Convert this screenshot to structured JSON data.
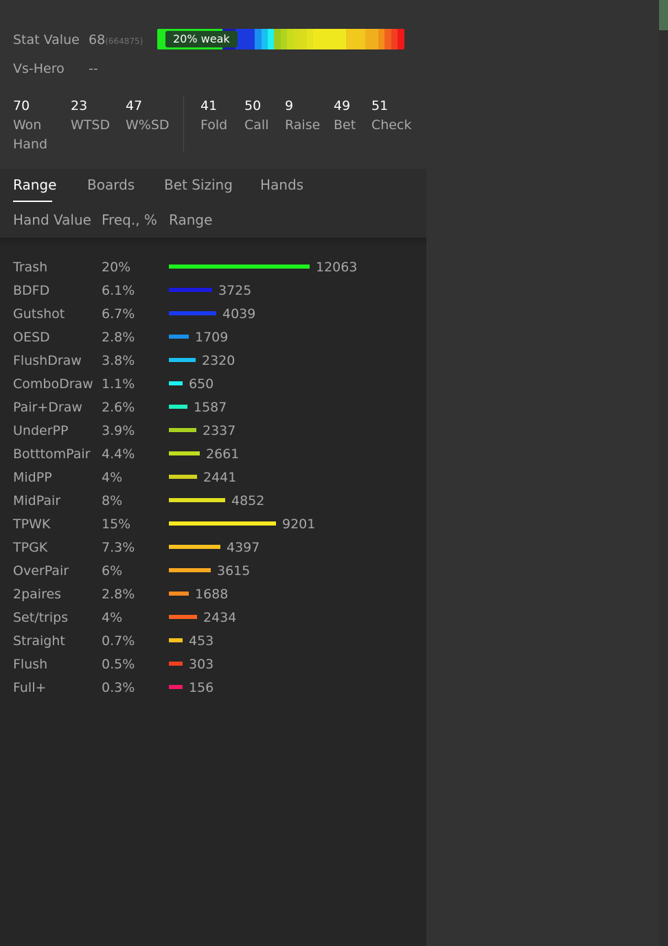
{
  "stat": {
    "label": "Stat Value",
    "value": "68",
    "sub": "(664875)",
    "badge": "20% weak",
    "heat_colors": [
      "#1ee81e",
      "#1ee81e",
      "#1ee81e",
      "#1ee81e",
      "#1ee81e",
      "#1ee81e",
      "#1ee81e",
      "#1ee81e",
      "#1ee81e",
      "#1ee81e",
      "#1a1ab8",
      "#1a1ab8",
      "#1a3ae0",
      "#1a3ae0",
      "#1a3ae0",
      "#1a90f0",
      "#1ac0f0",
      "#20f0f0",
      "#9ac81e",
      "#b0d41e",
      "#c8dc1e",
      "#d4dc1e",
      "#dcdc1e",
      "#e4e41e",
      "#f0e81e",
      "#f0e81e",
      "#f0e81e",
      "#f0e81e",
      "#f0e81e",
      "#f0c81e",
      "#f0c81e",
      "#f0c81e",
      "#f0b01e",
      "#f0b01e",
      "#f09018",
      "#f06020",
      "#f04020",
      "#f01818"
    ]
  },
  "vs_hero": {
    "label": "Vs-Hero",
    "value": "--"
  },
  "stats_cells": [
    {
      "value": "70",
      "label": "Won\nHand"
    },
    {
      "value": "23",
      "label": "WTSD"
    },
    {
      "value": "47",
      "label": "W%SD"
    },
    {
      "value": "41",
      "label": "Fold"
    },
    {
      "value": "50",
      "label": "Call"
    },
    {
      "value": "9",
      "label": "Raise"
    },
    {
      "value": "49",
      "label": "Bet"
    },
    {
      "value": "51",
      "label": "Check"
    }
  ],
  "tabs": [
    {
      "label": "Range",
      "active": true
    },
    {
      "label": "Boards"
    },
    {
      "label": "Bet Sizing"
    },
    {
      "label": "Hands"
    }
  ],
  "columns": {
    "hand_value": "Hand Value",
    "freq": "Freq., %",
    "range": "Range"
  },
  "rows": [
    {
      "name": "Trash",
      "freq": "20%",
      "count": 12063,
      "color": "#1ef01e"
    },
    {
      "name": "BDFD",
      "freq": "6.1%",
      "count": 3725,
      "color": "#1a1ae0"
    },
    {
      "name": "Gutshot",
      "freq": "6.7%",
      "count": 4039,
      "color": "#1a3af0"
    },
    {
      "name": "OESD",
      "freq": "2.8%",
      "count": 1709,
      "color": "#1a90e8"
    },
    {
      "name": "FlushDraw",
      "freq": "3.8%",
      "count": 2320,
      "color": "#1ac0f0"
    },
    {
      "name": "ComboDraw",
      "freq": "1.1%",
      "count": 650,
      "color": "#1ef0f0"
    },
    {
      "name": "Pair+Draw",
      "freq": "2.6%",
      "count": 1587,
      "color": "#1ef0c0"
    },
    {
      "name": "UnderPP",
      "freq": "3.9%",
      "count": 2337,
      "color": "#a8d020"
    },
    {
      "name": "BotttomPair",
      "freq": "4.4%",
      "count": 2661,
      "color": "#c0dc20"
    },
    {
      "name": "MidPP",
      "freq": "4%",
      "count": 2441,
      "color": "#d0d020"
    },
    {
      "name": "MidPair",
      "freq": "8%",
      "count": 4852,
      "color": "#e0e020"
    },
    {
      "name": "TPWK",
      "freq": "15%",
      "count": 9201,
      "color": "#f8e820"
    },
    {
      "name": "TPGK",
      "freq": "7.3%",
      "count": 4397,
      "color": "#f8c020"
    },
    {
      "name": "OverPair",
      "freq": "6%",
      "count": 3615,
      "color": "#f8a820"
    },
    {
      "name": "2paires",
      "freq": "2.8%",
      "count": 1688,
      "color": "#f88820"
    },
    {
      "name": "Set/trips",
      "freq": "4%",
      "count": 2434,
      "color": "#f86020"
    },
    {
      "name": "Straight",
      "freq": "0.7%",
      "count": 453,
      "color": "#f8c020"
    },
    {
      "name": "Flush",
      "freq": "0.5%",
      "count": 303,
      "color": "#f04020"
    },
    {
      "name": "Full+",
      "freq": "0.3%",
      "count": 156,
      "color": "#f01868"
    }
  ]
}
